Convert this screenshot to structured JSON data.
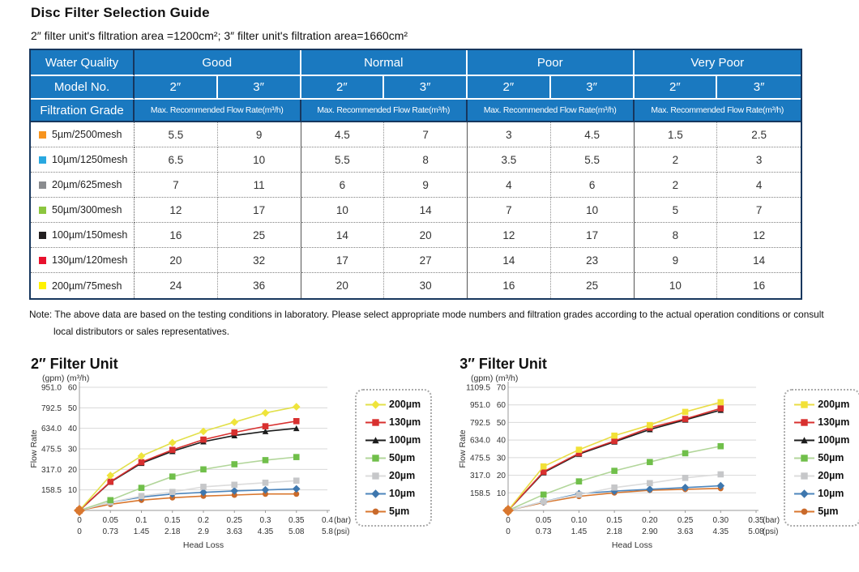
{
  "header": {
    "title": "Disc Filter Selection Guide",
    "subtitle": "2″  filter unit's filtration area =1200cm²;   3″  filter unit's filtration area=1660cm²"
  },
  "table": {
    "water_quality_label": "Water Quality",
    "model_no_label": "Model No.",
    "filtration_grade_label": "Filtration Grade",
    "groups": [
      "Good",
      "Normal",
      "Poor",
      "Very Poor"
    ],
    "model_sizes": [
      "2″",
      "3″"
    ],
    "flow_rate_header": "Max. Recommended Flow Rate(m³/h)",
    "rows": [
      {
        "grade": "5µm/2500mesh",
        "color": "#F7941E",
        "values": [
          5.5,
          9,
          4.5,
          7,
          3,
          4.5,
          1.5,
          2.5
        ]
      },
      {
        "grade": "10µm/1250mesh",
        "color": "#29A8E0",
        "values": [
          6.5,
          10,
          5.5,
          8,
          3.5,
          5.5,
          2,
          3
        ]
      },
      {
        "grade": "20µm/625mesh",
        "color": "#8A8C8F",
        "values": [
          7,
          11,
          6,
          9,
          4,
          6,
          2,
          4
        ]
      },
      {
        "grade": "50µm/300mesh",
        "color": "#8CC63F",
        "values": [
          12,
          17,
          10,
          14,
          7,
          10,
          5,
          7
        ]
      },
      {
        "grade": "100µm/150mesh",
        "color": "#231F20",
        "values": [
          16,
          25,
          14,
          20,
          12,
          17,
          8,
          12
        ]
      },
      {
        "grade": "130µm/120mesh",
        "color": "#E8112D",
        "values": [
          20,
          32,
          17,
          27,
          14,
          23,
          9,
          14
        ]
      },
      {
        "grade": "200µm/75mesh",
        "color": "#FFF200",
        "values": [
          24,
          36,
          20,
          30,
          16,
          25,
          10,
          16
        ]
      }
    ]
  },
  "note": {
    "line1": "Note: The above data are based on the testing conditions in laboratory. Please select appropriate mode numbers and filtration grades according to the actual operation conditions or consult",
    "line2": "local distributors or sales representatives."
  },
  "chart_data": [
    {
      "type": "line",
      "title": "2″  Filter Unit",
      "unit_header": "(gpm) (m³/h)",
      "ylabel": "Flow Rate",
      "xlabel": "Head Loss",
      "ylim": [
        0,
        60
      ],
      "y_ticks": [
        {
          "gpm": "951.0",
          "m3h": 60
        },
        {
          "gpm": "792.5",
          "m3h": 50
        },
        {
          "gpm": "634.0",
          "m3h": 40
        },
        {
          "gpm": "475.5",
          "m3h": 30
        },
        {
          "gpm": "317.0",
          "m3h": 20
        },
        {
          "gpm": "158.5",
          "m3h": 10
        }
      ],
      "x_bar": [
        "0",
        "0.05",
        "0.1",
        "0.15",
        "0.2",
        "0.25",
        "0.3",
        "0.35",
        "0.4"
      ],
      "x_psi": [
        "0",
        "0.73",
        "1.45",
        "2.18",
        "2.9",
        "3.63",
        "4.35",
        "5.08",
        "5.8"
      ],
      "x_units": [
        "(bar)",
        "(psi)"
      ],
      "grid": true,
      "legend_position": "right",
      "series": [
        {
          "name": "200µm",
          "color": "#EFE43B",
          "line_color": "#E2E04A",
          "marker": "diamond",
          "values": [
            0,
            17,
            26.5,
            33,
            38.5,
            43,
            47.5,
            50.5
          ]
        },
        {
          "name": "130µm",
          "color": "#D8302F",
          "line_color": "#D8302F",
          "marker": "square",
          "values": [
            0,
            14,
            23.5,
            29.5,
            34.5,
            38,
            41,
            43.5
          ]
        },
        {
          "name": "100µm",
          "color": "#1C1C1C",
          "line_color": "#1C1C1C",
          "marker": "triangle",
          "values": [
            0,
            13.8,
            23,
            28.8,
            33.5,
            36.5,
            38.5,
            40
          ]
        },
        {
          "name": "50µm",
          "color": "#70BF4A",
          "line_color": "#B2D69A",
          "marker": "square",
          "values": [
            0,
            5,
            11,
            16.5,
            20,
            22.5,
            24.5,
            26
          ]
        },
        {
          "name": "20µm",
          "color": "#C6C7C9",
          "line_color": "#DCDCDC",
          "marker": "square",
          "values": [
            0,
            4,
            7,
            9,
            11.5,
            12.5,
            13.5,
            14.5
          ]
        },
        {
          "name": "10µm",
          "color": "#3E77AE",
          "line_color": "#4E86BC",
          "marker": "diamond",
          "values": [
            0,
            4,
            6.5,
            8,
            8.8,
            9.5,
            10,
            10.5
          ]
        },
        {
          "name": "5µm",
          "color": "#C96A2B",
          "line_color": "#D9772E",
          "marker": "circle",
          "values": [
            0,
            3,
            5,
            6.2,
            7,
            7.5,
            8,
            8
          ]
        }
      ]
    },
    {
      "type": "line",
      "title": "3″  Filter Unit",
      "unit_header": "(gpm) (m³/h)",
      "ylabel": "Flow Rate",
      "xlabel": "Head Loss",
      "ylim": [
        0,
        70
      ],
      "y_ticks": [
        {
          "gpm": "1109.5",
          "m3h": 70
        },
        {
          "gpm": "951.0",
          "m3h": 60
        },
        {
          "gpm": "792.5",
          "m3h": 50
        },
        {
          "gpm": "634.0",
          "m3h": 40
        },
        {
          "gpm": "475.5",
          "m3h": 30
        },
        {
          "gpm": "317.0",
          "m3h": 20
        },
        {
          "gpm": "158.5",
          "m3h": 10
        }
      ],
      "x_bar": [
        "0",
        "0.05",
        "0.10",
        "0.15",
        "0.20",
        "0.25",
        "0.30",
        "0.35"
      ],
      "x_psi": [
        "0",
        "0.73",
        "1.45",
        "2.18",
        "2.90",
        "3.63",
        "4.35",
        "5.08"
      ],
      "x_units": [
        "(bar)",
        "(psi)"
      ],
      "grid": true,
      "legend_position": "right",
      "series": [
        {
          "name": "200µm",
          "color": "#F2E137",
          "line_color": "#E9DD45",
          "marker": "square",
          "values": [
            0,
            25,
            34.5,
            42.5,
            48.5,
            56,
            61.5
          ]
        },
        {
          "name": "130µm",
          "color": "#D8302F",
          "line_color": "#D8302F",
          "marker": "square",
          "values": [
            0,
            22,
            32.5,
            39.5,
            47,
            52,
            58
          ]
        },
        {
          "name": "100µm",
          "color": "#1C1C1C",
          "line_color": "#1C1C1C",
          "marker": "triangle",
          "values": [
            0,
            21.5,
            32,
            39,
            46,
            51.5,
            57
          ]
        },
        {
          "name": "50µm",
          "color": "#70BF4A",
          "line_color": "#B2D69A",
          "marker": "square",
          "values": [
            0,
            9,
            16.5,
            22.5,
            27.5,
            32.5,
            36.5
          ]
        },
        {
          "name": "20µm",
          "color": "#C6C7C9",
          "line_color": "#DCDCDC",
          "marker": "square",
          "values": [
            0,
            5,
            9,
            13,
            15.5,
            18.5,
            20.5
          ]
        },
        {
          "name": "10µm",
          "color": "#3E77AE",
          "line_color": "#4E86BC",
          "marker": "diamond",
          "values": [
            0,
            5,
            9.5,
            11,
            12,
            13,
            14
          ]
        },
        {
          "name": "5µm",
          "color": "#C96A2B",
          "line_color": "#D9772E",
          "marker": "circle",
          "values": [
            0,
            4.5,
            8,
            10,
            11.5,
            12,
            12.5
          ]
        }
      ]
    }
  ]
}
